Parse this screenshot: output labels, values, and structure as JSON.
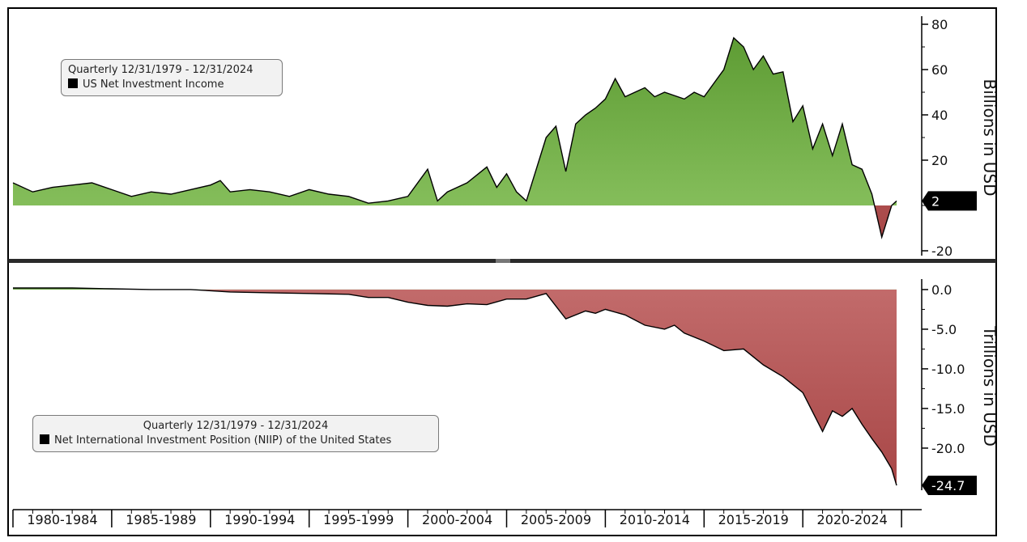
{
  "chart_data": [
    {
      "type": "area",
      "legend": {
        "period": "Quarterly 12/31/1979 - 12/31/2024",
        "series_label": "US Net Investment Income",
        "placement": "top-left"
      },
      "ylabel": "Billions in USD",
      "ylim": [
        -20,
        80
      ],
      "yticks": [
        "80",
        "60",
        "40",
        "20",
        "-20"
      ],
      "last_value_label": "2",
      "x": [
        1980,
        1981,
        1982,
        1983,
        1984,
        1985,
        1986,
        1987,
        1988,
        1989,
        1990,
        1990.5,
        1991,
        1992,
        1993,
        1994,
        1995,
        1996,
        1997,
        1998,
        1999,
        2000,
        2001,
        2001.5,
        2002,
        2003,
        2004,
        2004.5,
        2005,
        2005.5,
        2006,
        2007,
        2007.5,
        2008,
        2008.5,
        2009,
        2009.5,
        2010,
        2010.5,
        2011,
        2011.5,
        2012,
        2012.5,
        2013,
        2014,
        2014.5,
        2015,
        2016,
        2016.5,
        2017,
        2017.5,
        2018,
        2018.5,
        2019,
        2019.5,
        2020,
        2020.5,
        2021,
        2021.5,
        2022,
        2022.5,
        2023,
        2023.5,
        2024,
        2024.5,
        2024.75
      ],
      "values": [
        10,
        6,
        8,
        9,
        10,
        7,
        4,
        6,
        5,
        7,
        9,
        11,
        6,
        7,
        6,
        4,
        7,
        5,
        4,
        1,
        2,
        4,
        16,
        2,
        6,
        10,
        17,
        8,
        14,
        6,
        2,
        30,
        35,
        15,
        36,
        40,
        43,
        47,
        56,
        48,
        50,
        52,
        48,
        50,
        47,
        50,
        48,
        60,
        74,
        70,
        60,
        66,
        58,
        59,
        37,
        44,
        25,
        36,
        22,
        36,
        18,
        16,
        5,
        -14,
        0,
        2
      ],
      "colors": {
        "positive": "#6aab3e",
        "negative": "#b85a5a",
        "axis": "#000000"
      }
    },
    {
      "type": "area",
      "legend": {
        "period": "Quarterly 12/31/1979 - 12/31/2024",
        "series_label": "Net International Investment Position (NIIP) of the United States",
        "placement": "bottom-left"
      },
      "ylabel": "Trillions in USD",
      "ylim": [
        -24.7,
        0.3
      ],
      "yticks": [
        "0.0",
        "-5.0",
        "-10.0",
        "-15.0",
        "-20.0"
      ],
      "last_value_label": "-24.7",
      "x": [
        1980,
        1983,
        1985,
        1987,
        1989,
        1991,
        1993,
        1995,
        1997,
        1998,
        1999,
        2000,
        2001,
        2002,
        2003,
        2004,
        2005,
        2006,
        2007,
        2008,
        2009,
        2009.5,
        2010,
        2011,
        2012,
        2013,
        2013.5,
        2014,
        2015,
        2016,
        2017,
        2018,
        2019,
        2020,
        2021,
        2021.5,
        2022,
        2022.5,
        2023,
        2023.5,
        2024,
        2024.5,
        2024.75
      ],
      "values": [
        0.2,
        0.2,
        0.1,
        0.0,
        0.0,
        -0.3,
        -0.4,
        -0.5,
        -0.6,
        -1.0,
        -1.0,
        -1.6,
        -2.0,
        -2.1,
        -1.8,
        -1.9,
        -1.2,
        -1.2,
        -0.5,
        -3.7,
        -2.7,
        -3.0,
        -2.5,
        -3.2,
        -4.5,
        -5.0,
        -4.5,
        -5.5,
        -6.5,
        -7.7,
        -7.5,
        -9.5,
        -11.0,
        -13.0,
        -17.9,
        -15.3,
        -16.0,
        -15.0,
        -17.0,
        -18.8,
        -20.5,
        -22.6,
        -24.7
      ],
      "colors": {
        "positive": "#6aab3e",
        "negative": "#b85a5a",
        "axis": "#000000"
      }
    }
  ],
  "x_axis": {
    "tick_labels": [
      "1980-1984",
      "1985-1989",
      "1990-1994",
      "1995-1999",
      "2000-2004",
      "2005-2009",
      "2010-2014",
      "2015-2019",
      "2020-2024"
    ]
  }
}
